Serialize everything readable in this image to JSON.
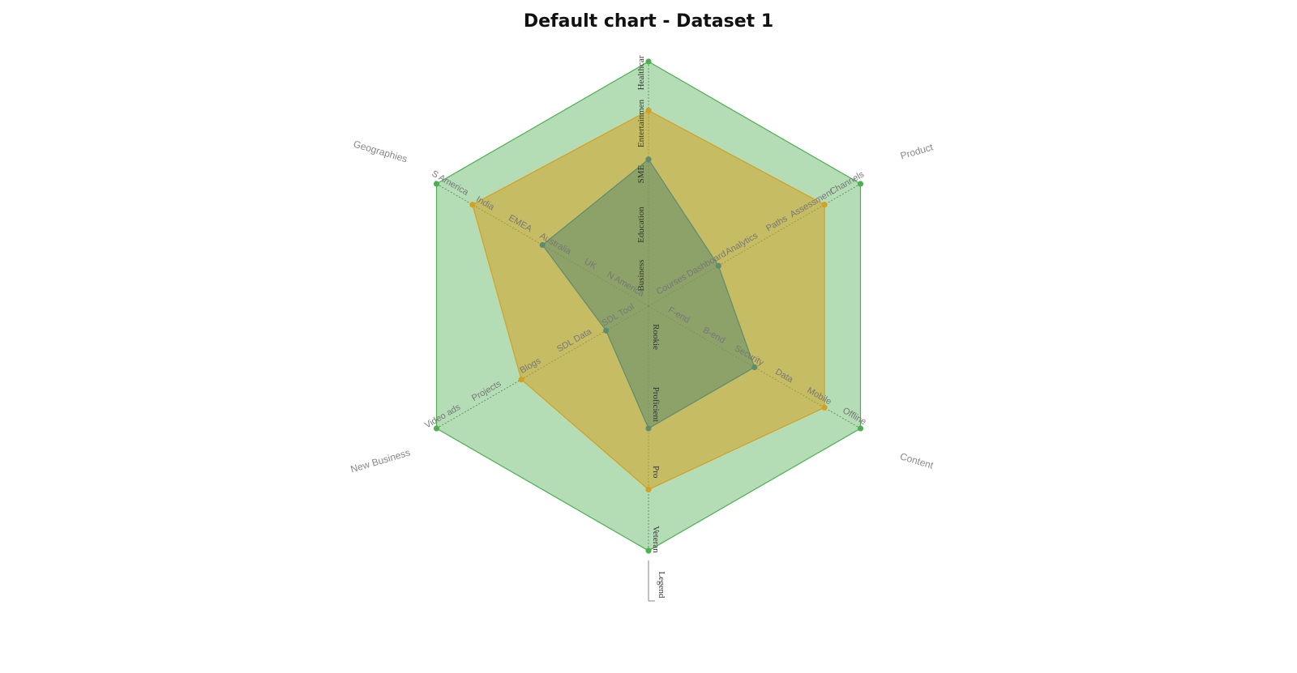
{
  "chart_data": {
    "type": "radar",
    "title": "Default chart - Dataset 1",
    "axes": [
      {
        "name": "",
        "ticks": [
          "Business",
          "Education",
          "SME",
          "Entertainmen",
          "Healthcar"
        ]
      },
      {
        "name": "Product",
        "ticks": [
          "Courses",
          "Dashboard",
          "Analytics",
          "Paths",
          "Assessment",
          "Channels"
        ]
      },
      {
        "name": "Content",
        "ticks": [
          "F-end",
          "B-end",
          "Security",
          "Data",
          "Mobile",
          "Offline"
        ]
      },
      {
        "name": "",
        "ticks": [
          "Rookie",
          "Proficient",
          "Pro",
          "Veteran"
        ]
      },
      {
        "name": "New Business",
        "ticks": [
          "SDL Tool",
          "SDL Data",
          "Blogs",
          "Projects",
          "Video ads"
        ]
      },
      {
        "name": "Geographies",
        "ticks": [
          "N America",
          "UK",
          "Australia",
          "EMEA",
          "India",
          "S America"
        ]
      }
    ],
    "series": [
      {
        "values": [
          1,
          1,
          1,
          1,
          1,
          1
        ],
        "color": "#4caf50"
      },
      {
        "values": [
          0.8,
          0.83,
          0.83,
          0.75,
          0.6,
          0.83
        ],
        "color": "#d4a020"
      },
      {
        "values": [
          0.6,
          0.33,
          0.5,
          0.5,
          0.2,
          0.5
        ],
        "color": "#5e8c6e"
      }
    ],
    "legend": "Legend",
    "range": [
      0,
      1
    ],
    "grid": false
  }
}
